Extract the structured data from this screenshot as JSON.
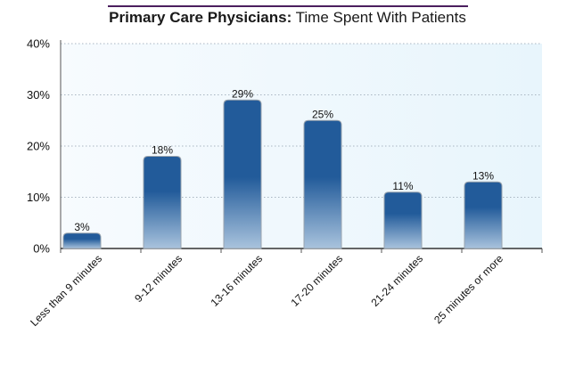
{
  "chart_data": {
    "type": "bar",
    "title_bold": "Primary Care Physicians:",
    "title_rest": " Time Spent With Patients",
    "categories": [
      "Less than 9 minutes",
      "9-12 minutes",
      "13-16 minutes",
      "17-20 minutes",
      "21-24 minutes",
      "25 minutes or more"
    ],
    "values": [
      3,
      18,
      29,
      25,
      11,
      13
    ],
    "data_labels": [
      "3%",
      "18%",
      "29%",
      "25%",
      "11%",
      "13%"
    ],
    "yticks": [
      0,
      10,
      20,
      30,
      40
    ],
    "ytick_labels": [
      "0%",
      "10%",
      "20%",
      "30%",
      "40%"
    ],
    "ylim": [
      0,
      40
    ],
    "grid": true,
    "colors": {
      "bar": "#225b9a",
      "bar_light": "#a9c3dd",
      "plot_bg": "#eef7fc",
      "title_rule": "#4b1f5e"
    }
  }
}
